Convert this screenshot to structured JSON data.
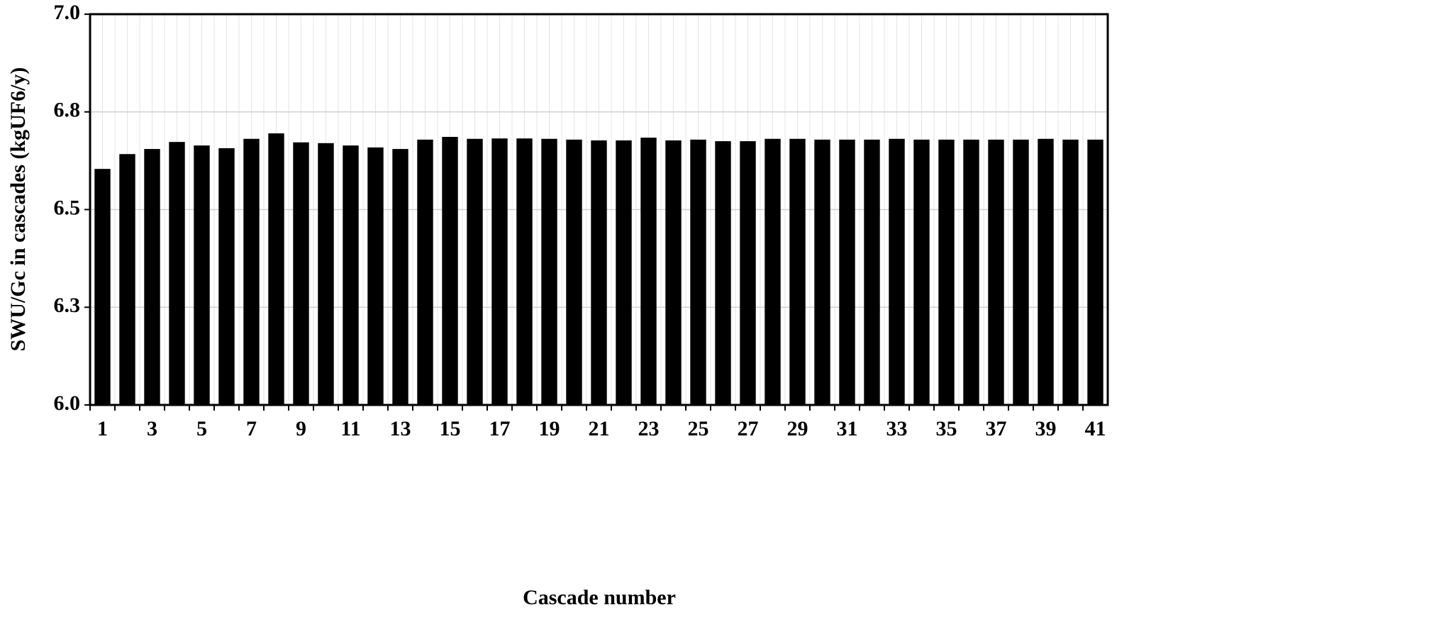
{
  "chart_data": {
    "type": "bar",
    "x_label": "Cascade number",
    "y_label": "SWU/Gc in cascades (kgUF6/y)",
    "categories": [
      "1",
      null,
      "3",
      null,
      "5",
      null,
      "7",
      null,
      "9",
      null,
      "11",
      null,
      "13",
      null,
      "15",
      null,
      "17",
      null,
      "19",
      null,
      "21",
      null,
      "23",
      null,
      "25",
      null,
      "27",
      null,
      "29",
      null,
      "31",
      null,
      "33",
      null,
      "35",
      null,
      "37",
      null,
      "39",
      null,
      "41"
    ],
    "values": [
      6.604,
      6.642,
      6.655,
      6.673,
      6.664,
      6.657,
      6.681,
      6.695,
      6.672,
      6.67,
      6.664,
      6.659,
      6.655,
      6.679,
      6.686,
      6.681,
      6.682,
      6.682,
      6.681,
      6.679,
      6.677,
      6.677,
      6.684,
      6.677,
      6.679,
      6.675,
      6.675,
      6.681,
      6.681,
      6.679,
      6.679,
      6.679,
      6.681,
      6.679,
      6.679,
      6.679,
      6.679,
      6.679,
      6.681,
      6.679,
      6.679
    ],
    "color": "#000000",
    "ylim": [
      6.0,
      7.0
    ],
    "yticks": [
      {
        "value": 6.0,
        "label": "6.0"
      },
      {
        "value": 6.25,
        "label": "6.3"
      },
      {
        "value": 6.5,
        "label": "6.5"
      },
      {
        "value": 6.75,
        "label": "6.8"
      },
      {
        "value": 7.0,
        "label": "7.0"
      }
    ],
    "grid": true
  }
}
